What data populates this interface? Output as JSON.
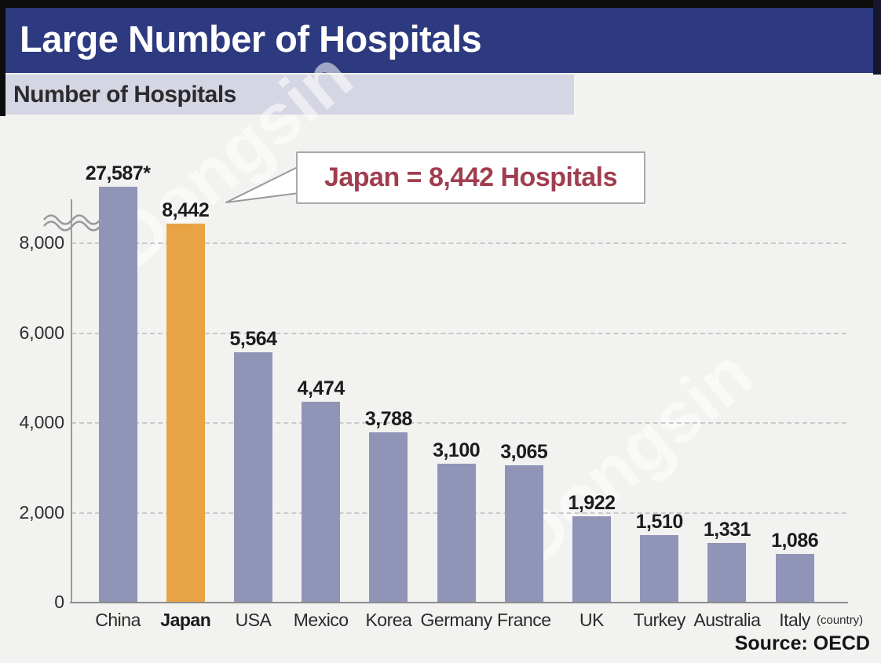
{
  "header": {
    "title": "Large Number of Hospitals"
  },
  "subtitle": "Number of Hospitals",
  "callout": {
    "text": "Japan = 8,442 Hospitals"
  },
  "source": "Source: OECD",
  "watermark": "Dongsin",
  "colors": {
    "header_bg": "#2d3a7f",
    "subtitle_band_bg": "#d4d6e3",
    "bar_blue": "#9095b7",
    "bar_orange": "#e7a344",
    "callout_text": "#a03e4f",
    "page_bg": "#f2f2f0"
  },
  "chart_data": {
    "type": "bar",
    "title": "Number of Hospitals",
    "categories": [
      "China",
      "Japan",
      "USA",
      "Mexico",
      "Korea",
      "Germany",
      "France",
      "UK",
      "Turkey",
      "Australia",
      "Italy"
    ],
    "values": [
      27587,
      8442,
      5564,
      4474,
      3788,
      3100,
      3065,
      1922,
      1510,
      1331,
      1086
    ],
    "value_labels": [
      "27,587*",
      "8,442",
      "5,564",
      "4,474",
      "3,788",
      "3,100",
      "3,065",
      "1,922",
      "1,510",
      "1,331",
      "1,086"
    ],
    "highlight_category": "Japan",
    "xlabel": "(country)",
    "ylabel": "",
    "yticks": [
      0,
      2000,
      4000,
      6000,
      8000
    ],
    "ytick_labels": [
      "0",
      "2,000",
      "4,000",
      "6,000",
      "8,000"
    ],
    "ylim": [
      0,
      8800
    ],
    "axis_break": true,
    "grid": "horizontal-dashed",
    "legend": "none",
    "bar_color": "#9095b7",
    "highlight_color": "#e7a344",
    "source": "Source: OECD"
  }
}
